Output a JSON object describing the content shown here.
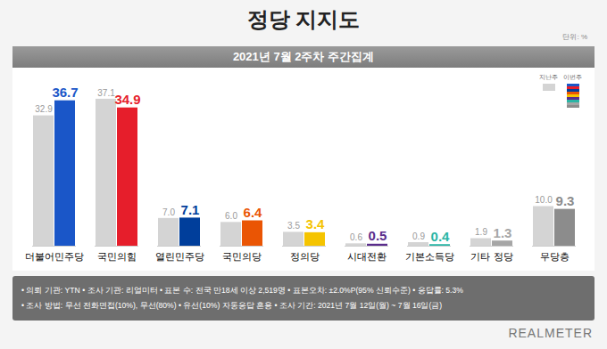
{
  "chart_data": {
    "type": "bar",
    "title": "정당 지지도",
    "unit": "단위: %",
    "subtitle": "2021년 7월 2주차 주간집계",
    "categories": [
      "더불어민주당",
      "국민의힘",
      "열린민주당",
      "국민의당",
      "정의당",
      "시대전환",
      "기본소득당",
      "기타 정당",
      "무당층"
    ],
    "series": [
      {
        "name": "지난주",
        "color": "#d4d4d4",
        "values": [
          32.9,
          37.1,
          7.0,
          6.0,
          3.5,
          0.6,
          0.9,
          1.9,
          10.0
        ]
      },
      {
        "name": "이번주",
        "colors": [
          "#1a56c8",
          "#e61e2b",
          "#003e9b",
          "#ea5504",
          "#f5c400",
          "#5a2d8c",
          "#2bb5a5",
          "#a6a6a6",
          "#8c8c8c"
        ],
        "values": [
          36.7,
          34.9,
          7.1,
          6.4,
          3.4,
          0.5,
          0.4,
          1.3,
          9.3
        ]
      }
    ],
    "ylim": [
      0,
      40
    ],
    "grid": false,
    "tick_labels": "x",
    "data_labels": true,
    "legend": "top-right",
    "notes": [
      "• 의뢰 기관: YTN • 조사 기관: 리얼미터 • 표본 수: 전국 만18세 이상 2,519명 • 표본오차: ±2.0%P(95% 신뢰수준) • 응답률: 5.3%",
      "• 조사 방법: 무선 전화면접(10%), 무선(80%) • 유선(10%) 자동응답 혼용 • 조사 기간: 2021년 7월 12일(월) ~ 7월 16일(금)"
    ],
    "source": "REALMETER"
  }
}
